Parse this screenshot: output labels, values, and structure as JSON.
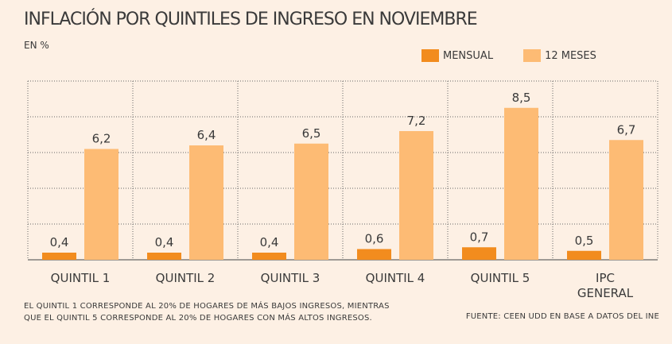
{
  "title": "INFLACIÓN POR QUINTILES DE INGRESO EN NOVIEMBRE",
  "unit": "EN %",
  "note_lines": [
    "EL QUINTIL 1 CORRESPONDE AL 20% DE HOGARES DE MÁS BAJOS INGRESOS, MIENTRAS",
    "QUE EL QUINTIL 5 CORRESPONDE AL 20% DE HOGARES CON MÁS ALTOS INGRESOS."
  ],
  "source": "FUENTE: CEEN UDD EN BASE A DATOS DEL INE",
  "colors": {
    "mensual": "#f28c1e",
    "doce_meses": "#fdbb74",
    "grid": "#666666",
    "background": "#fdf0e4"
  },
  "chart_data": {
    "type": "bar",
    "title": "INFLACIÓN POR QUINTILES DE INGRESO EN NOVIEMBRE",
    "ylabel": "EN %",
    "ylim": [
      0,
      10
    ],
    "legend_position": "top-right",
    "grid": true,
    "categories": [
      [
        "QUINTIL 1"
      ],
      [
        "QUINTIL 2"
      ],
      [
        "QUINTIL 3"
      ],
      [
        "QUINTIL 4"
      ],
      [
        "QUINTIL 5"
      ],
      [
        "IPC",
        "GENERAL"
      ]
    ],
    "series": [
      {
        "name": "MENSUAL",
        "values": [
          0.4,
          0.4,
          0.4,
          0.6,
          0.7,
          0.5
        ],
        "labels": [
          "0,4",
          "0,4",
          "0,4",
          "0,6",
          "0,7",
          "0,5"
        ]
      },
      {
        "name": "12 MESES",
        "values": [
          6.2,
          6.4,
          6.5,
          7.2,
          8.5,
          6.7
        ],
        "labels": [
          "6,2",
          "6,4",
          "6,5",
          "7,2",
          "8,5",
          "6,7"
        ]
      }
    ]
  }
}
